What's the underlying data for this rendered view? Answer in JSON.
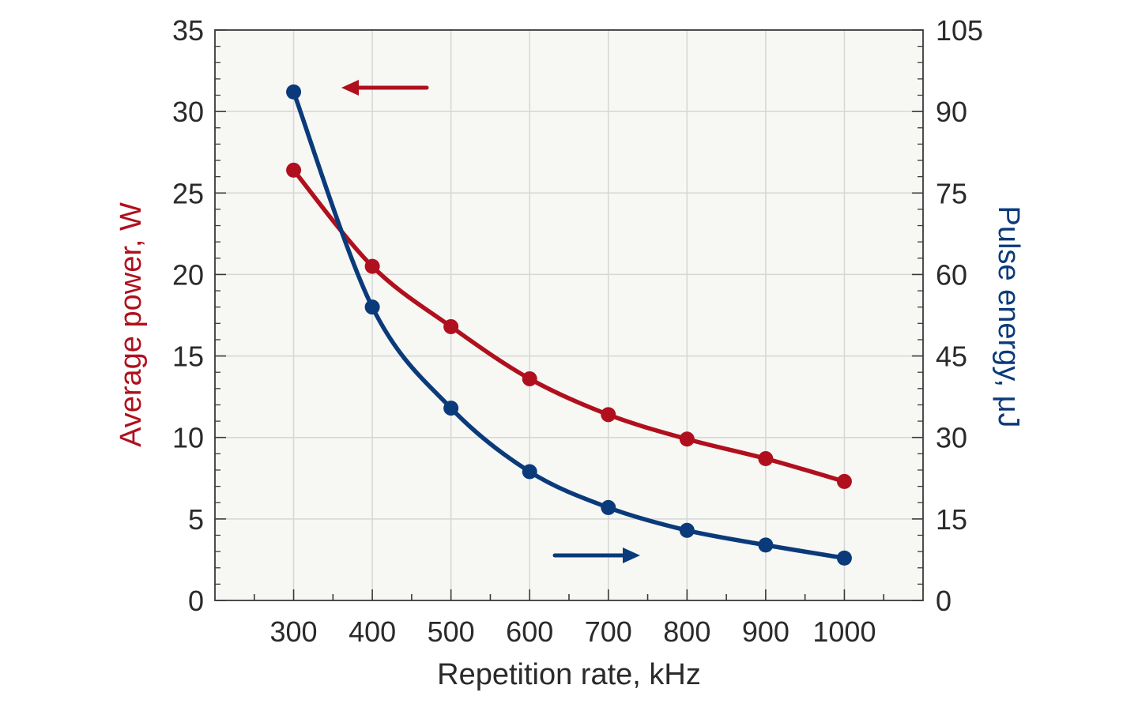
{
  "chart_data": {
    "type": "line",
    "title": "",
    "xlabel": "Repetition rate, kHz",
    "ylabel_left": "Average power, W",
    "ylabel_right": "Pulse energy, μJ",
    "x": [
      300,
      400,
      500,
      600,
      700,
      800,
      900,
      1000
    ],
    "x_tick_labels": [
      "300",
      "400",
      "500",
      "600",
      "700",
      "800",
      "900",
      "1000"
    ],
    "xlim": [
      200,
      1100
    ],
    "ylim_left": [
      0,
      35
    ],
    "ylim_right": [
      0,
      105
    ],
    "y_ticks_left": [
      "0",
      "5",
      "10",
      "15",
      "20",
      "25",
      "30",
      "35"
    ],
    "y_ticks_right": [
      "0",
      "15",
      "30",
      "45",
      "60",
      "75",
      "90",
      "105"
    ],
    "grid": true,
    "series": [
      {
        "axis": "left",
        "color": "#b0101e",
        "values": [
          26.4,
          20.5,
          16.8,
          13.6,
          11.4,
          9.9,
          8.7,
          7.3
        ]
      },
      {
        "axis": "right",
        "color": "#0a3a7a",
        "values": [
          93.6,
          54.0,
          35.4,
          23.7,
          17.1,
          12.9,
          10.2,
          7.8
        ]
      }
    ],
    "annotations": [
      {
        "type": "arrow",
        "direction": "left",
        "series_index": 0,
        "color": "#b0101e"
      },
      {
        "type": "arrow",
        "direction": "right",
        "series_index": 1,
        "color": "#0a3a7a"
      }
    ],
    "colors": {
      "plot_background": "#f7f7f4",
      "grid": "#d6d6d6",
      "axis": "#3a3a3a",
      "tick_text": "#2a2a2a",
      "left_title": "#b0101e",
      "right_title": "#0a3a7a",
      "x_title": "#2a2a2a"
    }
  }
}
